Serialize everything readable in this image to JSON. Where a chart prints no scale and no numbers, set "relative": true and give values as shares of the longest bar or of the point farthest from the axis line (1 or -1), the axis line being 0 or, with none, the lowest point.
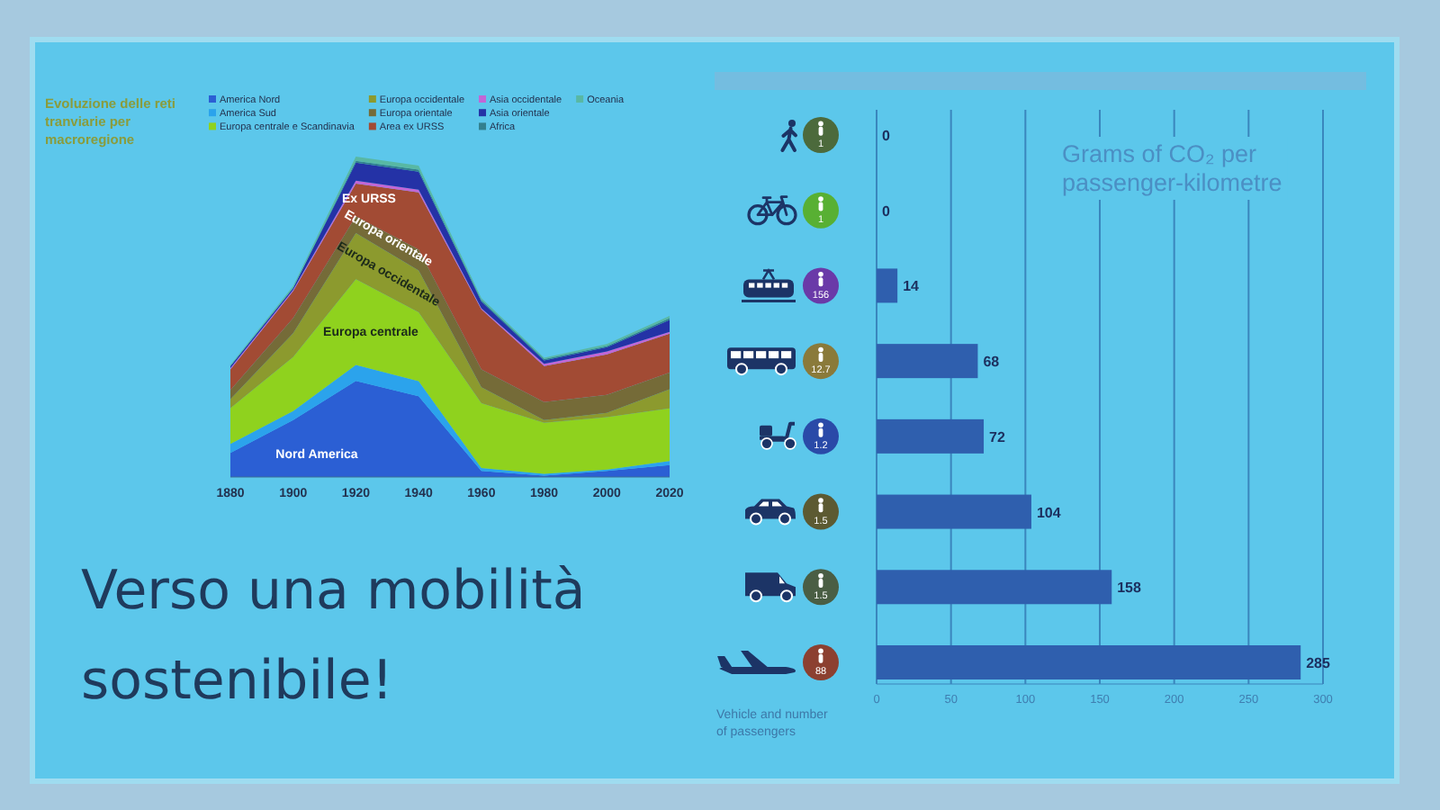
{
  "chart_data": [
    {
      "type": "area",
      "stacked": true,
      "relative": true,
      "title": "Evoluzione delle reti tranviarie per macroregione",
      "x": [
        1880,
        1900,
        1920,
        1940,
        1960,
        1980,
        2000,
        2020
      ],
      "xlim": [
        1880,
        2020
      ],
      "xticks": [
        1880,
        1900,
        1920,
        1940,
        1960,
        1980,
        2000,
        2020
      ],
      "legend": "top",
      "series": [
        {
          "name": "America Nord",
          "color": "#2b5fd4",
          "values": [
            0.075,
            0.178,
            0.3,
            0.252,
            0.019,
            0.004,
            0.019,
            0.037
          ]
        },
        {
          "name": "America Sud",
          "color": "#2ba3ec",
          "values": [
            0.028,
            0.028,
            0.05,
            0.047,
            0.009,
            0.006,
            0.004,
            0.013
          ]
        },
        {
          "name": "Europa centrale e Scandinavia",
          "color": "#8fd21e",
          "values": [
            0.112,
            0.168,
            0.267,
            0.215,
            0.202,
            0.159,
            0.164,
            0.164
          ]
        },
        {
          "name": "Europa occidentale",
          "color": "#8c9a2e",
          "values": [
            0.028,
            0.075,
            0.144,
            0.131,
            0.05,
            0.009,
            0.013,
            0.06
          ]
        },
        {
          "name": "Europa orientale",
          "color": "#756b38",
          "values": [
            0.028,
            0.047,
            0.052,
            0.065,
            0.056,
            0.056,
            0.056,
            0.052
          ]
        },
        {
          "name": "Area ex URSS",
          "color": "#a24b34",
          "values": [
            0.065,
            0.084,
            0.103,
            0.178,
            0.187,
            0.112,
            0.127,
            0.121
          ]
        },
        {
          "name": "Asia occidentale",
          "color": "#c266d6",
          "values": [
            0.004,
            0.004,
            0.009,
            0.009,
            0.004,
            0.007,
            0.009,
            0.006
          ]
        },
        {
          "name": "Asia orientale",
          "color": "#2432a6",
          "values": [
            0.006,
            0.006,
            0.056,
            0.056,
            0.021,
            0.011,
            0.013,
            0.037
          ]
        },
        {
          "name": "Africa",
          "color": "#33808e",
          "values": [
            0,
            0,
            0.006,
            0.006,
            0.004,
            0.004,
            0.004,
            0.006
          ]
        },
        {
          "name": "Oceania",
          "color": "#58b8a4",
          "values": [
            0.004,
            0.006,
            0.013,
            0.013,
            0.006,
            0.004,
            0.006,
            0.007
          ]
        }
      ],
      "annotations": [
        "Ex URSS",
        "Europa orientale",
        "Europa occidentale",
        "Europa centrale",
        "Nord America"
      ]
    },
    {
      "type": "bar",
      "orientation": "horizontal",
      "title": "Grams of CO₂ per passenger-kilometre",
      "ylabel": "Vehicle and number of passengers",
      "categories": [
        "1",
        "1",
        "156",
        "12.7",
        "1.2",
        "1.5",
        "1.5",
        "88"
      ],
      "values": [
        0,
        0,
        14,
        68,
        72,
        104,
        158,
        285
      ],
      "color": "#2f5fae",
      "xlim": [
        0,
        300
      ],
      "xticks": [
        0,
        50,
        100,
        150,
        200,
        250,
        300
      ],
      "grid": "x",
      "data_labels": true
    },
    {
      "type": "other",
      "title": "Verso una mobilità sostenibile!"
    }
  ]
}
